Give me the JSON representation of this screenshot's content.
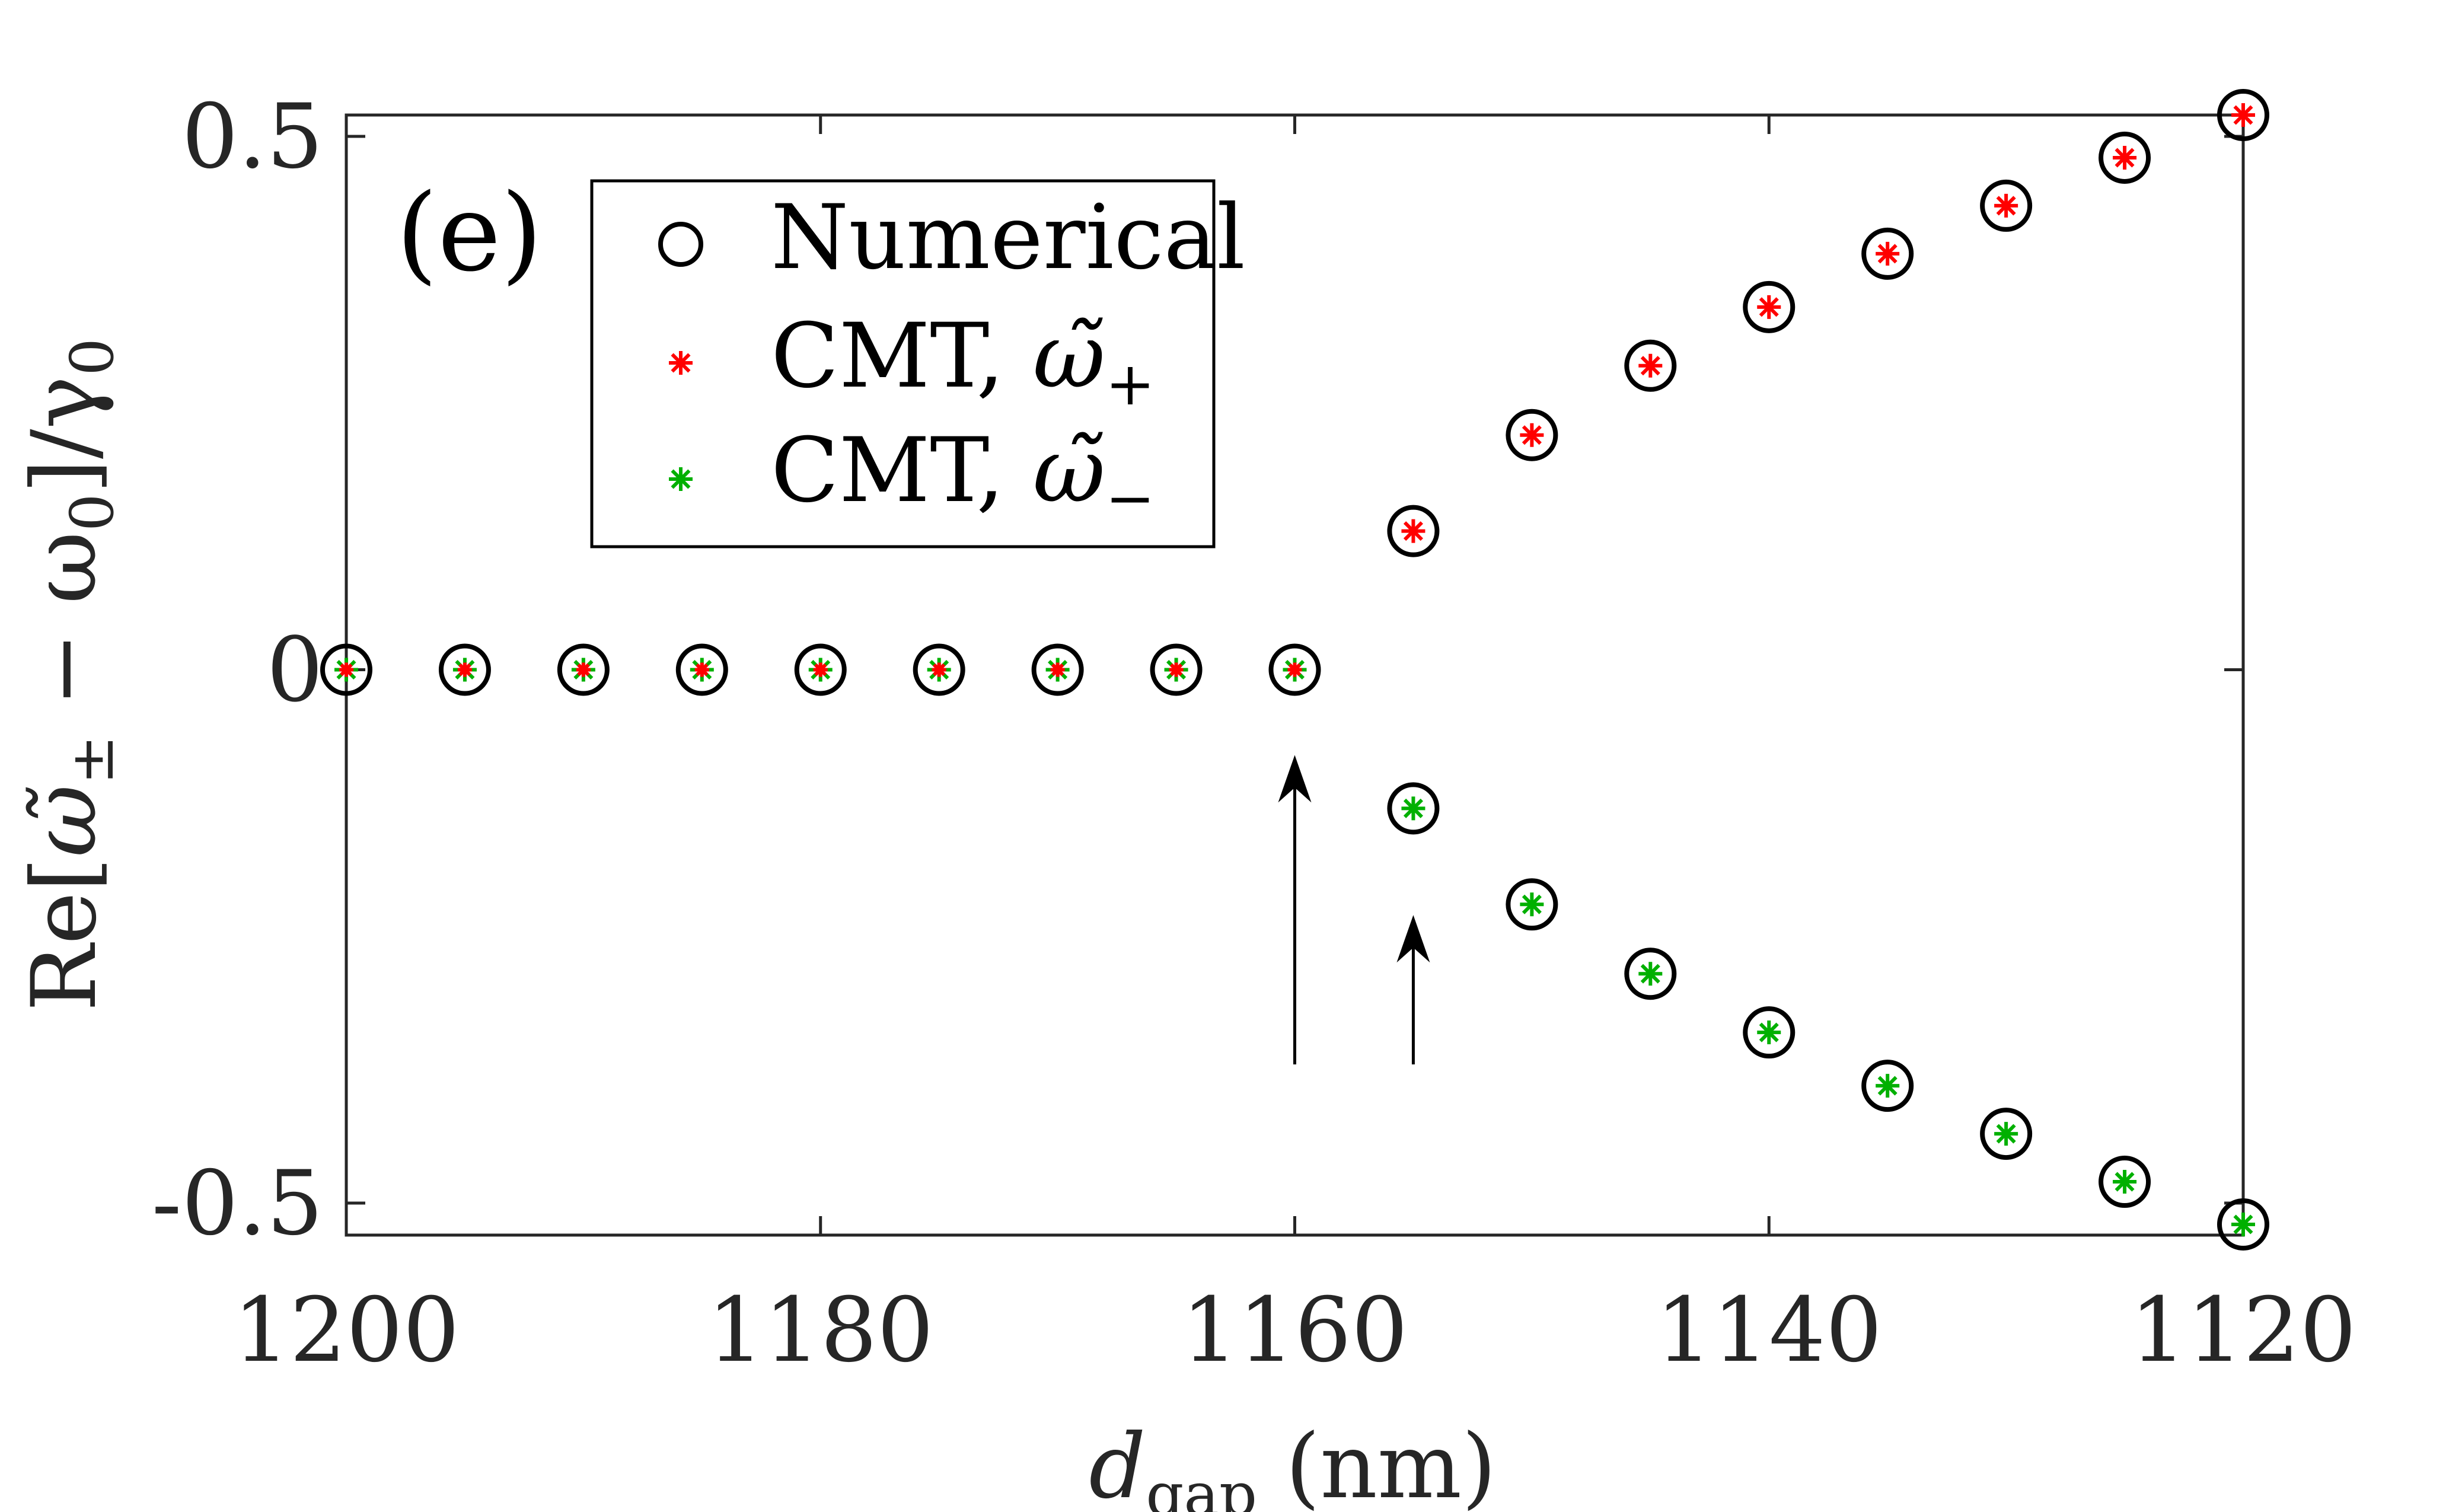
{
  "chart_data": {
    "type": "scatter",
    "panel_label": "(e)",
    "x": [
      1200,
      1195,
      1190,
      1185,
      1180,
      1175,
      1170,
      1165,
      1160,
      1155,
      1150,
      1145,
      1140,
      1135,
      1130,
      1125,
      1120
    ],
    "series": [
      {
        "name": "Numerical",
        "legend": "Numerical",
        "marker": "circle",
        "color": "#000000",
        "upper": [
          0,
          0,
          0,
          0,
          0,
          0,
          0,
          0,
          0,
          0.13,
          0.22,
          0.285,
          0.34,
          0.39,
          0.435,
          0.48,
          0.52
        ],
        "lower": [
          0,
          0,
          0,
          0,
          0,
          0,
          0,
          0,
          0,
          -0.13,
          -0.22,
          -0.285,
          -0.34,
          -0.39,
          -0.435,
          -0.48,
          -0.52
        ]
      },
      {
        "name": "CMT, omega_plus",
        "legend_main": "CMT, ",
        "legend_omega": "ω̃",
        "legend_sub": "+",
        "marker": "asterisk",
        "color": "#ff0000",
        "values": [
          0,
          0,
          0,
          0,
          0,
          0,
          0,
          0,
          0,
          0.13,
          0.22,
          0.285,
          0.34,
          0.39,
          0.435,
          0.48,
          0.52
        ]
      },
      {
        "name": "CMT, omega_minus",
        "legend_main": "CMT, ",
        "legend_omega": "ω̃",
        "legend_sub": "−",
        "marker": "asterisk",
        "color": "#00b000",
        "values": [
          0,
          0,
          0,
          0,
          0,
          0,
          0,
          0,
          0,
          -0.13,
          -0.22,
          -0.285,
          -0.34,
          -0.39,
          -0.435,
          -0.48,
          -0.52
        ]
      }
    ],
    "xlim": [
      1200,
      1120
    ],
    "ylim": [
      -0.53,
      0.52
    ],
    "xticks": [
      1200,
      1180,
      1160,
      1140,
      1120
    ],
    "xtick_labels": [
      "1200",
      "1180",
      "1160",
      "1140",
      "1120"
    ],
    "yticks": [
      -0.5,
      0,
      0.5
    ],
    "ytick_labels": [
      "-0.5",
      "0",
      "0.5"
    ],
    "xlabel": {
      "main": "d",
      "sub": "gap",
      "rest": " (nm)"
    },
    "ylabel": {
      "re": "Re[",
      "omega": "ω̃",
      "sub_pm": "±",
      "minus": " − ω",
      "sub0": "0",
      "close": "]/γ",
      "sub0b": "0"
    },
    "arrows": [
      {
        "x": 1160,
        "y_from": -0.37,
        "y_to": -0.08
      },
      {
        "x": 1155,
        "y_from": -0.37,
        "y_to": -0.23
      }
    ],
    "legend_position": "top-left"
  }
}
